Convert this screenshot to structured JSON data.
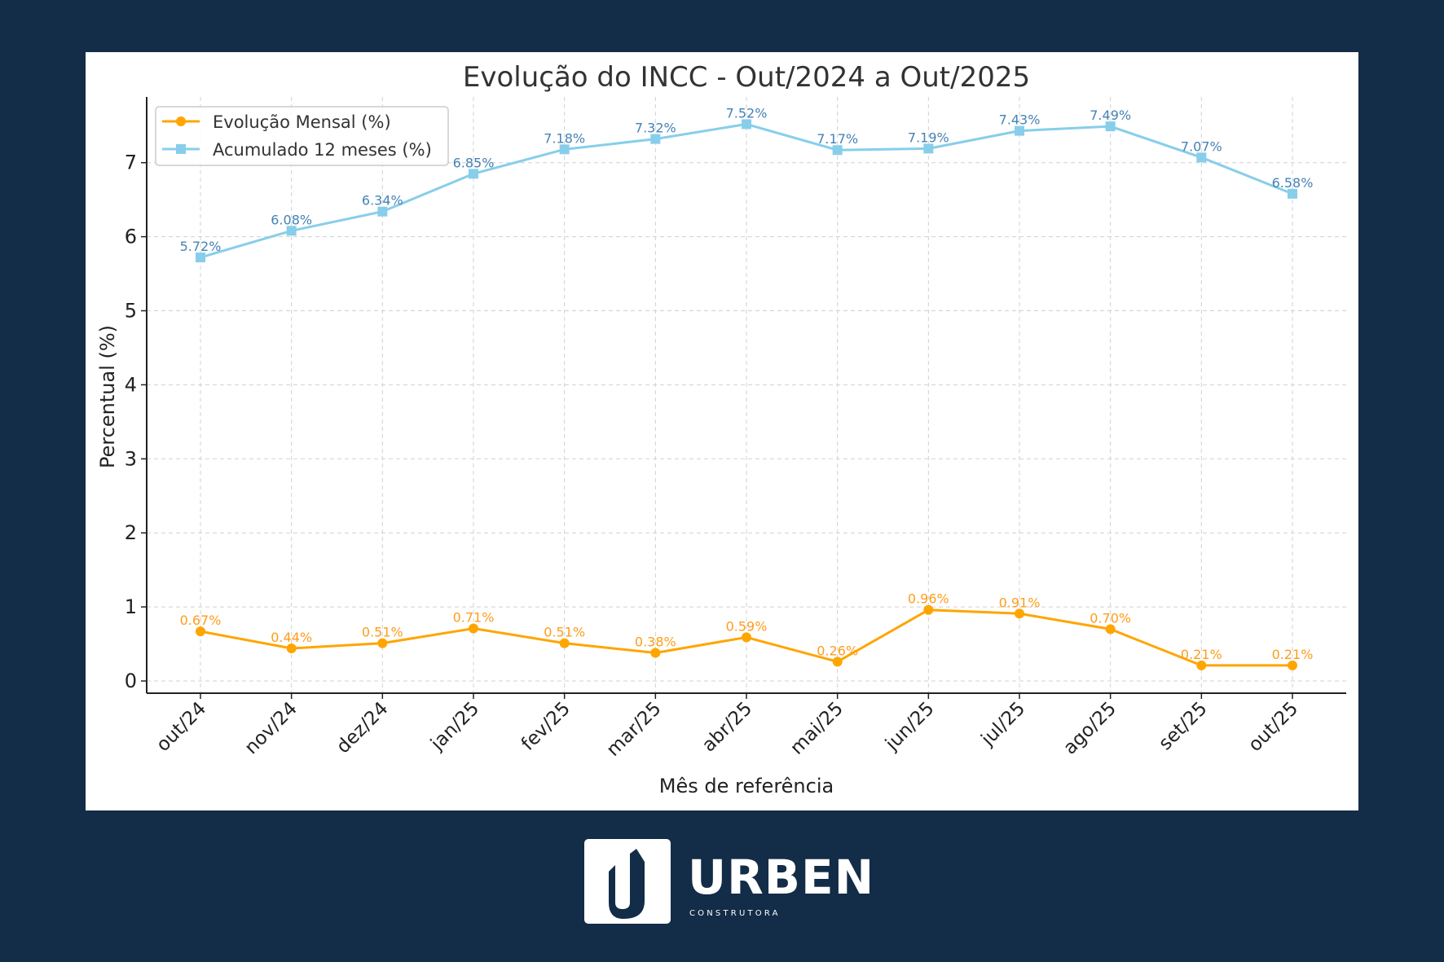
{
  "chart_data": {
    "type": "line",
    "title": "Evolução do INCC - Out/2024 a Out/2025",
    "xlabel": "Mês de referência",
    "ylabel": "Percentual (%)",
    "categories": [
      "out/24",
      "nov/24",
      "dez/24",
      "jan/25",
      "fev/25",
      "mar/25",
      "abr/25",
      "mai/25",
      "jun/25",
      "jul/25",
      "ago/25",
      "set/25",
      "out/25"
    ],
    "ylim": [
      -0.15,
      7.8
    ],
    "yticks": [
      0,
      1,
      2,
      3,
      4,
      5,
      6,
      7
    ],
    "grid": true,
    "legend_position": "top-left",
    "series": [
      {
        "name": "Evolução Mensal (%)",
        "marker": "circle",
        "color": "#ffa500",
        "label_color": "#ff9c1a",
        "values": [
          0.67,
          0.44,
          0.51,
          0.71,
          0.51,
          0.38,
          0.59,
          0.26,
          0.96,
          0.91,
          0.7,
          0.21,
          0.21
        ],
        "labels": [
          "0.67%",
          "0.44%",
          "0.51%",
          "0.71%",
          "0.51%",
          "0.38%",
          "0.59%",
          "0.26%",
          "0.96%",
          "0.91%",
          "0.70%",
          "0.21%",
          "0.21%"
        ]
      },
      {
        "name": "Acumulado 12 meses (%)",
        "marker": "square",
        "color": "#87ceeb",
        "label_color": "#4682b4",
        "values": [
          5.72,
          6.08,
          6.34,
          6.85,
          7.18,
          7.32,
          7.52,
          7.17,
          7.19,
          7.43,
          7.49,
          7.07,
          6.58
        ],
        "labels": [
          "5.72%",
          "6.08%",
          "6.34%",
          "6.85%",
          "7.18%",
          "7.32%",
          "7.52%",
          "7.17%",
          "7.19%",
          "7.43%",
          "7.49%",
          "7.07%",
          "6.58%"
        ]
      }
    ]
  },
  "logo": {
    "name": "URBEN",
    "subtitle": "CONSTRUTORA"
  },
  "colors": {
    "background": "#132c47",
    "panel": "#ffffff"
  }
}
